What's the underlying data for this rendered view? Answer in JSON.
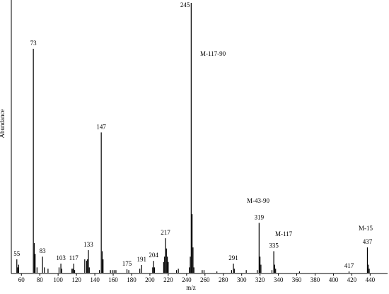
{
  "chart_data": {
    "type": "spectrum",
    "x_label": "m/z",
    "y_label": "Abundance",
    "xlim": [
      49,
      459
    ],
    "ylim": [
      0,
      100
    ],
    "xticks": [
      60,
      80,
      100,
      120,
      140,
      160,
      180,
      200,
      220,
      240,
      260,
      280,
      300,
      320,
      340,
      360,
      380,
      400,
      420,
      440
    ],
    "color": "#000000",
    "series": [
      {
        "show_labels": true,
        "x": [
          55,
          73,
          83,
          103,
          117,
          133,
          147,
          175,
          191,
          204,
          217,
          245,
          291,
          319,
          335,
          417,
          437
        ],
        "values": [
          5,
          83,
          6,
          3.4,
          3.4,
          8.4,
          52,
          1.3,
          2.9,
          4.4,
          12.8,
          100,
          3.4,
          18.5,
          8,
          0.5,
          9.4
        ]
      },
      {
        "show_labels": false,
        "x": [
          56,
          57,
          74,
          75,
          77,
          85,
          89,
          101,
          104,
          115,
          116,
          118,
          129,
          131,
          132,
          134,
          145,
          148,
          149,
          157,
          159,
          161,
          163,
          177,
          189,
          203,
          205,
          215,
          216,
          218,
          219,
          220,
          229,
          231,
          243,
          244,
          246,
          247,
          248,
          257,
          259,
          273,
          289,
          292,
          305,
          317,
          320,
          321,
          333,
          336,
          337,
          363,
          438,
          439
        ],
        "values": [
          2,
          3,
          11,
          7,
          2,
          2,
          1.5,
          2,
          1.5,
          1.5,
          1.5,
          1,
          5,
          4.5,
          5,
          2,
          1,
          8,
          5,
          1,
          1,
          1,
          1,
          1,
          1.5,
          2,
          2,
          4,
          6,
          9,
          6,
          4,
          1,
          1.5,
          2,
          6,
          21.7,
          9.4,
          2,
          1,
          1,
          0.5,
          1,
          1.5,
          1,
          1,
          6,
          3,
          1,
          3,
          1.5,
          0.5,
          3,
          1.5
        ]
      }
    ],
    "annotations": [
      "M-117-90",
      "M-43-90",
      "M-117",
      "M-15"
    ]
  }
}
